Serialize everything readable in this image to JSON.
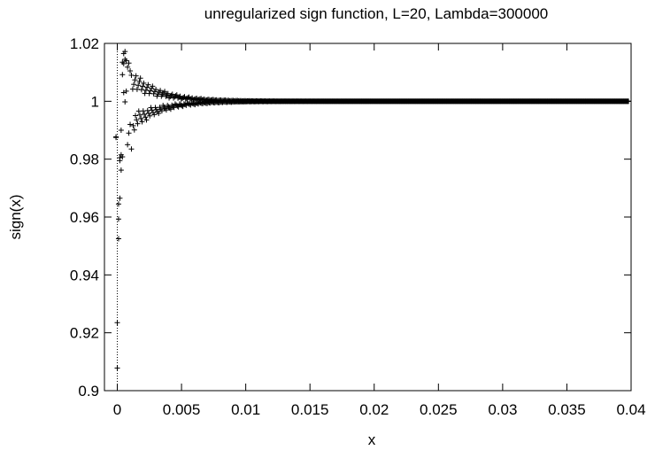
{
  "chart_data": {
    "type": "scatter",
    "title": "unregularized sign function, L=20, Lambda=300000",
    "xlabel": "x",
    "ylabel": "sign(x)",
    "xlim": [
      -0.001,
      0.04
    ],
    "ylim": [
      0.9,
      1.02
    ],
    "x_ticks": [
      0,
      0.005,
      0.01,
      0.015,
      0.02,
      0.025,
      0.03,
      0.035,
      0.04
    ],
    "x_tick_labels": [
      "0",
      "0.005",
      "0.01",
      "0.015",
      "0.02",
      "0.025",
      "0.03",
      "0.035",
      "0.04"
    ],
    "y_ticks": [
      0.9,
      0.92,
      0.94,
      0.96,
      0.98,
      1.0,
      1.02
    ],
    "y_tick_labels": [
      "0.9",
      "0.92",
      "0.94",
      "0.96",
      "0.98",
      "1",
      "1.02"
    ],
    "grid": false,
    "legend": "none",
    "marker": "plus",
    "zero_line": "dotted vertical line at x=0",
    "series": [
      {
        "points": [
          [
            -0.0001,
            0.9875
          ],
          [
            -0.0001,
            0.9877
          ],
          [
            0.0,
            0.9078
          ],
          [
            0.0,
            0.9235
          ],
          [
            0.0001,
            0.9525
          ],
          [
            0.0001,
            0.9593
          ],
          [
            0.0001,
            0.9645
          ],
          [
            0.0002,
            0.9665
          ],
          [
            0.0002,
            0.9795
          ],
          [
            0.0002,
            0.9805
          ],
          [
            0.0003,
            0.9762
          ],
          [
            0.0003,
            0.9815
          ],
          [
            0.0003,
            0.99
          ],
          [
            0.0004,
            0.9808
          ],
          [
            0.0004,
            1.0092
          ],
          [
            0.0004,
            1.0135
          ],
          [
            0.0005,
            1.013
          ],
          [
            0.0005,
            1.0165
          ],
          [
            0.0005,
            1.003
          ],
          [
            0.0006,
            1.0172
          ],
          [
            0.0006,
            1.0145
          ],
          [
            0.0006,
            0.9998
          ],
          [
            0.0007,
            1.014
          ],
          [
            0.0007,
            1.0035
          ],
          [
            0.0008,
            1.0118
          ],
          [
            0.0008,
            0.985
          ],
          [
            0.0009,
            1.0132
          ],
          [
            0.0009,
            0.989
          ],
          [
            0.001,
            1.0105
          ],
          [
            0.001,
            0.992
          ],
          [
            0.0011,
            1.009
          ],
          [
            0.0011,
            0.9835
          ]
        ]
      }
    ]
  }
}
